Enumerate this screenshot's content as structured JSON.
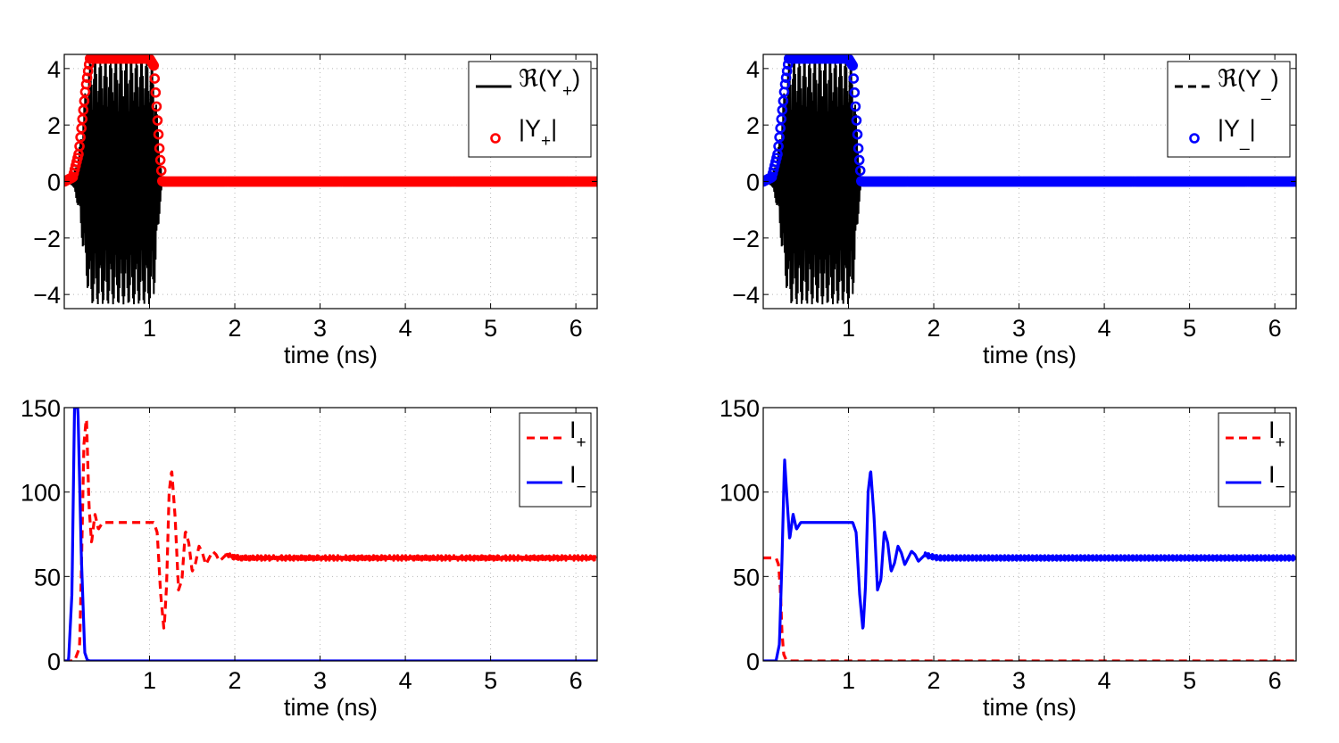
{
  "chart_data": [
    {
      "type": "line",
      "panel": "top-left",
      "xlabel": "time (ns)",
      "ylabel": "",
      "xlim": [
        0,
        6.25
      ],
      "ylim": [
        -4.5,
        4.5
      ],
      "xticks": [
        1,
        2,
        3,
        4,
        5,
        6
      ],
      "yticks": [
        -4,
        -2,
        0,
        2,
        4
      ],
      "ytick_labels": [
        "−4",
        "−2",
        "0",
        "2",
        "4"
      ],
      "grid": true,
      "legend_position": "top-right",
      "legend": [
        {
          "main": "ℜ(Y",
          "sub": "+",
          "tail": ")",
          "style": "solid",
          "color": "#000000"
        },
        {
          "main": "|Y",
          "sub": "+",
          "tail": "|",
          "style": "circle",
          "color": "#ff0000"
        }
      ],
      "series": [
        {
          "name": "ℜ(Y+)",
          "style": "solid",
          "color": "#000000",
          "kind": "oscillation",
          "envelope_x": [
            0.0,
            0.1,
            0.17,
            0.25,
            0.3,
            1.0,
            1.05,
            1.12,
            1.15,
            6.25
          ],
          "envelope_y": [
            0.0,
            0.15,
            1.0,
            3.3,
            4.35,
            4.35,
            4.1,
            1.0,
            0.0,
            0.0
          ]
        },
        {
          "name": "|Y+|",
          "style": "circle",
          "color": "#ff0000",
          "kind": "magnitude",
          "x": [
            0.0,
            0.1,
            0.17,
            0.25,
            0.3,
            1.0,
            1.05,
            1.12,
            1.15,
            6.25
          ],
          "y": [
            0.0,
            0.15,
            1.0,
            3.3,
            4.35,
            4.35,
            4.1,
            1.0,
            0.0,
            0.0
          ]
        }
      ]
    },
    {
      "type": "line",
      "panel": "top-right",
      "xlabel": "time (ns)",
      "ylabel": "",
      "xlim": [
        0,
        6.25
      ],
      "ylim": [
        -4.5,
        4.5
      ],
      "xticks": [
        1,
        2,
        3,
        4,
        5,
        6
      ],
      "yticks": [
        -4,
        -2,
        0,
        2,
        4
      ],
      "ytick_labels": [
        "−4",
        "−2",
        "0",
        "2",
        "4"
      ],
      "grid": true,
      "legend_position": "top-right",
      "legend": [
        {
          "main": "ℜ(Y",
          "sub": "_",
          "tail": ")",
          "style": "dashed",
          "color": "#000000"
        },
        {
          "main": "|Y",
          "sub": "_",
          "tail": "|",
          "style": "circle",
          "color": "#0000ff"
        }
      ],
      "series": [
        {
          "name": "ℜ(Y_)",
          "style": "dashed",
          "color": "#000000",
          "kind": "oscillation",
          "envelope_x": [
            0.0,
            0.1,
            0.17,
            0.25,
            0.3,
            1.0,
            1.05,
            1.12,
            1.15,
            6.25
          ],
          "envelope_y": [
            0.0,
            0.15,
            1.0,
            3.3,
            4.35,
            4.35,
            4.1,
            1.0,
            0.0,
            0.0
          ]
        },
        {
          "name": "|Y_|",
          "style": "circle",
          "color": "#0000ff",
          "kind": "magnitude",
          "x": [
            0.0,
            0.1,
            0.17,
            0.25,
            0.3,
            1.0,
            1.05,
            1.12,
            1.15,
            6.25
          ],
          "y": [
            0.0,
            0.15,
            1.0,
            3.3,
            4.35,
            4.35,
            4.1,
            1.0,
            0.0,
            0.0
          ]
        }
      ]
    },
    {
      "type": "line",
      "panel": "bottom-left",
      "xlabel": "time (ns)",
      "ylabel": "",
      "xlim": [
        0,
        6.25
      ],
      "ylim": [
        0,
        150
      ],
      "xticks": [
        1,
        2,
        3,
        4,
        5,
        6
      ],
      "yticks": [
        0,
        50,
        100,
        150
      ],
      "ytick_labels": [
        "0",
        "50",
        "100",
        "150"
      ],
      "grid": true,
      "legend_position": "top-right",
      "legend": [
        {
          "main": "I",
          "sub": "+",
          "tail": "",
          "style": "dashed",
          "color": "#ff0000"
        },
        {
          "main": "I",
          "sub": "−",
          "tail": "",
          "style": "solid",
          "color": "#0000ff"
        }
      ],
      "series": [
        {
          "name": "I+",
          "style": "dashed",
          "color": "#ff0000",
          "noise": 1.4,
          "x": [
            0.0,
            0.12,
            0.18,
            0.2,
            0.23,
            0.26,
            0.29,
            0.32,
            0.36,
            0.4,
            0.45,
            1.05,
            1.09,
            1.13,
            1.17,
            1.2,
            1.23,
            1.26,
            1.3,
            1.34,
            1.38,
            1.42,
            1.46,
            1.5,
            1.54,
            1.58,
            1.62,
            1.66,
            1.7,
            1.74,
            1.78,
            1.82,
            1.86,
            1.9,
            1.95,
            2.05,
            2.3,
            6.25
          ],
          "y": [
            0.0,
            0.0,
            8.0,
            52.0,
            128.0,
            145.0,
            92.0,
            70.0,
            87.0,
            78.0,
            82.0,
            82.0,
            76.0,
            40.0,
            18.0,
            45.0,
            100.0,
            113.0,
            85.0,
            42.0,
            48.0,
            77.0,
            70.0,
            53.0,
            58.0,
            68.0,
            64.0,
            57.0,
            61.0,
            65.0,
            63.0,
            59.0,
            61.0,
            63.0,
            62.0,
            61.0,
            61.0,
            61.0
          ]
        },
        {
          "name": "I−",
          "style": "solid",
          "color": "#0000ff",
          "noise": 0.0,
          "x": [
            0.0,
            0.05,
            0.09,
            0.12,
            0.16,
            0.2,
            0.24,
            0.27,
            0.3,
            6.25
          ],
          "y": [
            0.0,
            0.0,
            40.0,
            150.0,
            150.0,
            62.0,
            5.0,
            0.5,
            0.0,
            0.0
          ]
        }
      ]
    },
    {
      "type": "line",
      "panel": "bottom-right",
      "xlabel": "time (ns)",
      "ylabel": "",
      "xlim": [
        0,
        6.25
      ],
      "ylim": [
        0,
        150
      ],
      "xticks": [
        1,
        2,
        3,
        4,
        5,
        6
      ],
      "yticks": [
        0,
        50,
        100,
        150
      ],
      "ytick_labels": [
        "0",
        "50",
        "100",
        "150"
      ],
      "grid": true,
      "legend_position": "top-right",
      "legend": [
        {
          "main": "I",
          "sub": "+",
          "tail": "",
          "style": "dashed",
          "color": "#ff0000"
        },
        {
          "main": "I",
          "sub": "−",
          "tail": "",
          "style": "solid",
          "color": "#0000ff"
        }
      ],
      "series": [
        {
          "name": "I+",
          "style": "dashed",
          "color": "#ff0000",
          "noise": 0.0,
          "x": [
            0.0,
            0.15,
            0.18,
            0.2,
            0.22,
            0.24,
            0.27,
            0.3,
            6.25
          ],
          "y": [
            61.0,
            61.0,
            57.0,
            43.0,
            17.0,
            4.0,
            0.5,
            0.0,
            0.0
          ]
        },
        {
          "name": "I−",
          "style": "solid",
          "color": "#0000ff",
          "noise": 1.4,
          "x": [
            0.0,
            0.15,
            0.19,
            0.22,
            0.25,
            0.28,
            0.31,
            0.35,
            0.39,
            0.44,
            1.05,
            1.09,
            1.13,
            1.17,
            1.2,
            1.23,
            1.26,
            1.3,
            1.34,
            1.38,
            1.42,
            1.46,
            1.5,
            1.54,
            1.58,
            1.62,
            1.66,
            1.7,
            1.74,
            1.78,
            1.82,
            1.86,
            1.9,
            1.95,
            2.05,
            2.3,
            6.25
          ],
          "y": [
            0.0,
            0.0,
            10.0,
            60.0,
            120.0,
            95.0,
            72.0,
            87.0,
            78.0,
            82.0,
            82.0,
            76.0,
            40.0,
            18.0,
            45.0,
            100.0,
            113.0,
            85.0,
            42.0,
            48.0,
            77.0,
            70.0,
            53.0,
            58.0,
            68.0,
            64.0,
            57.0,
            61.0,
            65.0,
            63.0,
            59.0,
            61.0,
            63.0,
            62.0,
            61.0,
            61.0,
            61.0
          ]
        }
      ]
    }
  ]
}
